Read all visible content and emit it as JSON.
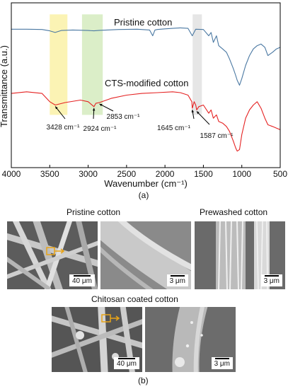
{
  "chart_data": {
    "type": "line",
    "xlabel": "Wavenumber (cm⁻¹)",
    "ylabel": "Transmittance (a.u.)",
    "xlim": [
      4000,
      500
    ],
    "xticks": [
      "4000",
      "3500",
      "3000",
      "2500",
      "2000",
      "1500",
      "1000",
      "500"
    ],
    "grid": false,
    "caption": "(a)",
    "highlight_bands": [
      {
        "from": 3500,
        "to": 3270,
        "color": "#fbf3b4"
      },
      {
        "from": 3080,
        "to": 2810,
        "color": "#dbeec8"
      },
      {
        "from": 1640,
        "to": 1520,
        "color": "#e6e6e6"
      }
    ],
    "series": [
      {
        "name": "Pristine cotton",
        "color": "#4a78a2",
        "x": [
          4000,
          3800,
          3600,
          3500,
          3430,
          3350,
          3200,
          3000,
          2924,
          2853,
          2600,
          2360,
          2200,
          2160,
          2130,
          2100,
          2000,
          1900,
          1800,
          1700,
          1645,
          1600,
          1500,
          1430,
          1400,
          1370,
          1330,
          1300,
          1250,
          1200,
          1160,
          1110,
          1080,
          1060,
          1030,
          1000,
          950,
          900,
          850,
          800,
          750,
          700,
          660,
          600,
          550,
          500
        ],
        "y": [
          0.84,
          0.84,
          0.838,
          0.83,
          0.82,
          0.832,
          0.835,
          0.832,
          0.83,
          0.833,
          0.838,
          0.84,
          0.835,
          0.8,
          0.835,
          0.838,
          0.842,
          0.845,
          0.848,
          0.845,
          0.8,
          0.84,
          0.838,
          0.8,
          0.82,
          0.76,
          0.8,
          0.74,
          0.72,
          0.7,
          0.66,
          0.6,
          0.56,
          0.53,
          0.5,
          0.54,
          0.62,
          0.68,
          0.72,
          0.74,
          0.75,
          0.73,
          0.68,
          0.7,
          0.72,
          0.73
        ]
      },
      {
        "name": "CTS-modified cotton",
        "color": "#e52222",
        "x": [
          4000,
          3800,
          3600,
          3500,
          3428,
          3300,
          3100,
          3000,
          2924,
          2900,
          2853,
          2700,
          2500,
          2300,
          2100,
          1900,
          1800,
          1700,
          1650,
          1645,
          1620,
          1600,
          1587,
          1560,
          1500,
          1430,
          1400,
          1370,
          1330,
          1300,
          1250,
          1200,
          1160,
          1110,
          1080,
          1060,
          1030,
          1000,
          950,
          900,
          850,
          800,
          750,
          700,
          660,
          600,
          550,
          500
        ],
        "y": [
          0.45,
          0.46,
          0.45,
          0.4,
          0.38,
          0.395,
          0.41,
          0.4,
          0.37,
          0.39,
          0.395,
          0.42,
          0.44,
          0.45,
          0.455,
          0.46,
          0.455,
          0.44,
          0.4,
          0.36,
          0.4,
          0.38,
          0.35,
          0.37,
          0.38,
          0.33,
          0.35,
          0.3,
          0.32,
          0.28,
          0.27,
          0.25,
          0.22,
          0.16,
          0.12,
          0.1,
          0.11,
          0.2,
          0.3,
          0.35,
          0.38,
          0.4,
          0.36,
          0.3,
          0.26,
          0.25,
          0.24,
          0.23
        ]
      }
    ],
    "annotations": [
      {
        "text": "3428 cm⁻¹",
        "x": 3428,
        "y": 0.38
      },
      {
        "text": "2924 cm⁻¹",
        "x": 2924,
        "y": 0.37
      },
      {
        "text": "2853 cm⁻¹",
        "x": 2853,
        "y": 0.395
      },
      {
        "text": "1645 cm⁻¹",
        "x": 1645,
        "y": 0.36
      },
      {
        "text": "1587 cm⁻¹",
        "x": 1587,
        "y": 0.35
      }
    ]
  },
  "micrographs": {
    "caption": "(b)",
    "pristine_title": "Pristine cotton",
    "prewashed_title": "Prewashed cotton",
    "chitosan_title": "Chitosan coated cotton",
    "panels": [
      {
        "scale_label": "40 μm"
      },
      {
        "scale_label": "3 μm"
      },
      {
        "scale_label": "3 μm"
      },
      {
        "scale_label": "40 μm"
      },
      {
        "scale_label": "3 μm"
      }
    ],
    "marker_color": "#e8a317"
  }
}
